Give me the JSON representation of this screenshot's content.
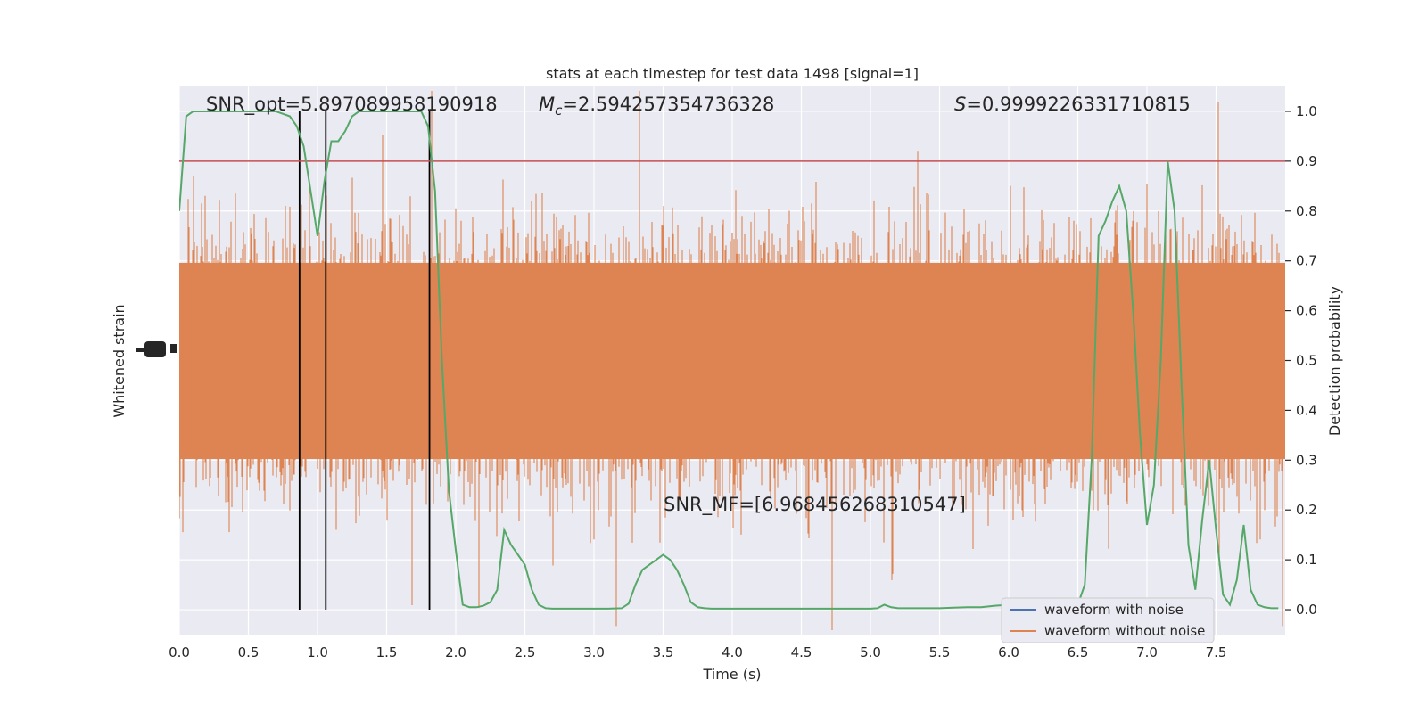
{
  "chart_data": {
    "type": "line",
    "title": "stats at each timestep for test data 1498 [signal=1]",
    "xlabel": "Time (s)",
    "ylabel_left": "Whitened strain",
    "ylabel_right": "Detection probability",
    "xlim": [
      0,
      8
    ],
    "ylim_right": [
      -0.05,
      1.05
    ],
    "x_ticks": [
      "0.0",
      "0.5",
      "1.0",
      "1.5",
      "2.0",
      "2.5",
      "3.0",
      "3.5",
      "4.0",
      "4.5",
      "5.0",
      "5.5",
      "6.0",
      "6.5",
      "7.0",
      "7.5"
    ],
    "y_ticks_right": [
      "0.0",
      "0.1",
      "0.2",
      "0.3",
      "0.4",
      "0.5",
      "0.6",
      "0.7",
      "0.8",
      "0.9",
      "1.0"
    ],
    "grid": true,
    "annotations": {
      "snr_opt": "SNR_opt=5.897089958190918",
      "chirp_mass_symbol": "M",
      "chirp_mass_sub": "c",
      "chirp_mass_value": "=2.594257354736328",
      "stat_symbol": "S",
      "stat_value": "=0.9999226331710815",
      "snr_mf": "SNR_MF=[6.968456268310547]"
    },
    "threshold": {
      "value": 0.9,
      "color": "#c44e52"
    },
    "vertical_lines": {
      "x": [
        0.87,
        1.06,
        1.81
      ],
      "color": "#000000"
    },
    "series": [
      {
        "name": "waveform with noise",
        "color": "#4c72b0"
      },
      {
        "name": "waveform without noise",
        "color": "#dd8452"
      }
    ],
    "detection_probability": {
      "color": "#55a868",
      "x": [
        0.0,
        0.05,
        0.1,
        0.2,
        0.3,
        0.4,
        0.5,
        0.6,
        0.7,
        0.8,
        0.85,
        0.9,
        0.95,
        1.0,
        1.05,
        1.1,
        1.15,
        1.2,
        1.25,
        1.3,
        1.4,
        1.5,
        1.6,
        1.7,
        1.75,
        1.8,
        1.85,
        1.9,
        1.95,
        2.0,
        2.05,
        2.1,
        2.15,
        2.2,
        2.25,
        2.3,
        2.35,
        2.4,
        2.45,
        2.5,
        2.55,
        2.6,
        2.65,
        2.7,
        2.75,
        2.8,
        2.9,
        3.0,
        3.1,
        3.2,
        3.25,
        3.3,
        3.35,
        3.4,
        3.45,
        3.5,
        3.55,
        3.6,
        3.65,
        3.7,
        3.75,
        3.8,
        3.85,
        3.9,
        4.0,
        4.2,
        4.5,
        4.7,
        4.8,
        4.9,
        5.0,
        5.05,
        5.1,
        5.15,
        5.2,
        5.3,
        5.4,
        5.5,
        5.6,
        5.7,
        5.8,
        5.9,
        6.0,
        6.1,
        6.2,
        6.3,
        6.4,
        6.5,
        6.55,
        6.6,
        6.65,
        6.7,
        6.75,
        6.8,
        6.85,
        6.9,
        6.95,
        7.0,
        7.05,
        7.1,
        7.15,
        7.2,
        7.25,
        7.3,
        7.35,
        7.4,
        7.45,
        7.5,
        7.55,
        7.6,
        7.65,
        7.7,
        7.75,
        7.8,
        7.85,
        7.9,
        7.95
      ],
      "y": [
        0.8,
        0.99,
        1.0,
        1.0,
        1.0,
        1.0,
        1.0,
        1.0,
        1.0,
        0.99,
        0.97,
        0.93,
        0.84,
        0.75,
        0.86,
        0.94,
        0.94,
        0.96,
        0.99,
        1.0,
        1.0,
        1.0,
        1.0,
        1.0,
        1.0,
        0.97,
        0.84,
        0.5,
        0.24,
        0.12,
        0.01,
        0.005,
        0.005,
        0.008,
        0.015,
        0.04,
        0.16,
        0.13,
        0.11,
        0.09,
        0.04,
        0.01,
        0.003,
        0.002,
        0.002,
        0.002,
        0.002,
        0.002,
        0.002,
        0.003,
        0.012,
        0.05,
        0.08,
        0.09,
        0.1,
        0.11,
        0.1,
        0.08,
        0.05,
        0.015,
        0.005,
        0.003,
        0.002,
        0.002,
        0.002,
        0.002,
        0.002,
        0.002,
        0.002,
        0.002,
        0.002,
        0.003,
        0.01,
        0.005,
        0.003,
        0.003,
        0.003,
        0.003,
        0.004,
        0.005,
        0.005,
        0.008,
        0.01,
        0.005,
        0.003,
        0.003,
        0.005,
        0.01,
        0.05,
        0.3,
        0.75,
        0.78,
        0.82,
        0.85,
        0.8,
        0.6,
        0.35,
        0.17,
        0.25,
        0.5,
        0.9,
        0.8,
        0.45,
        0.13,
        0.04,
        0.18,
        0.3,
        0.16,
        0.03,
        0.01,
        0.06,
        0.17,
        0.04,
        0.01,
        0.005,
        0.003,
        0.003
      ]
    }
  }
}
